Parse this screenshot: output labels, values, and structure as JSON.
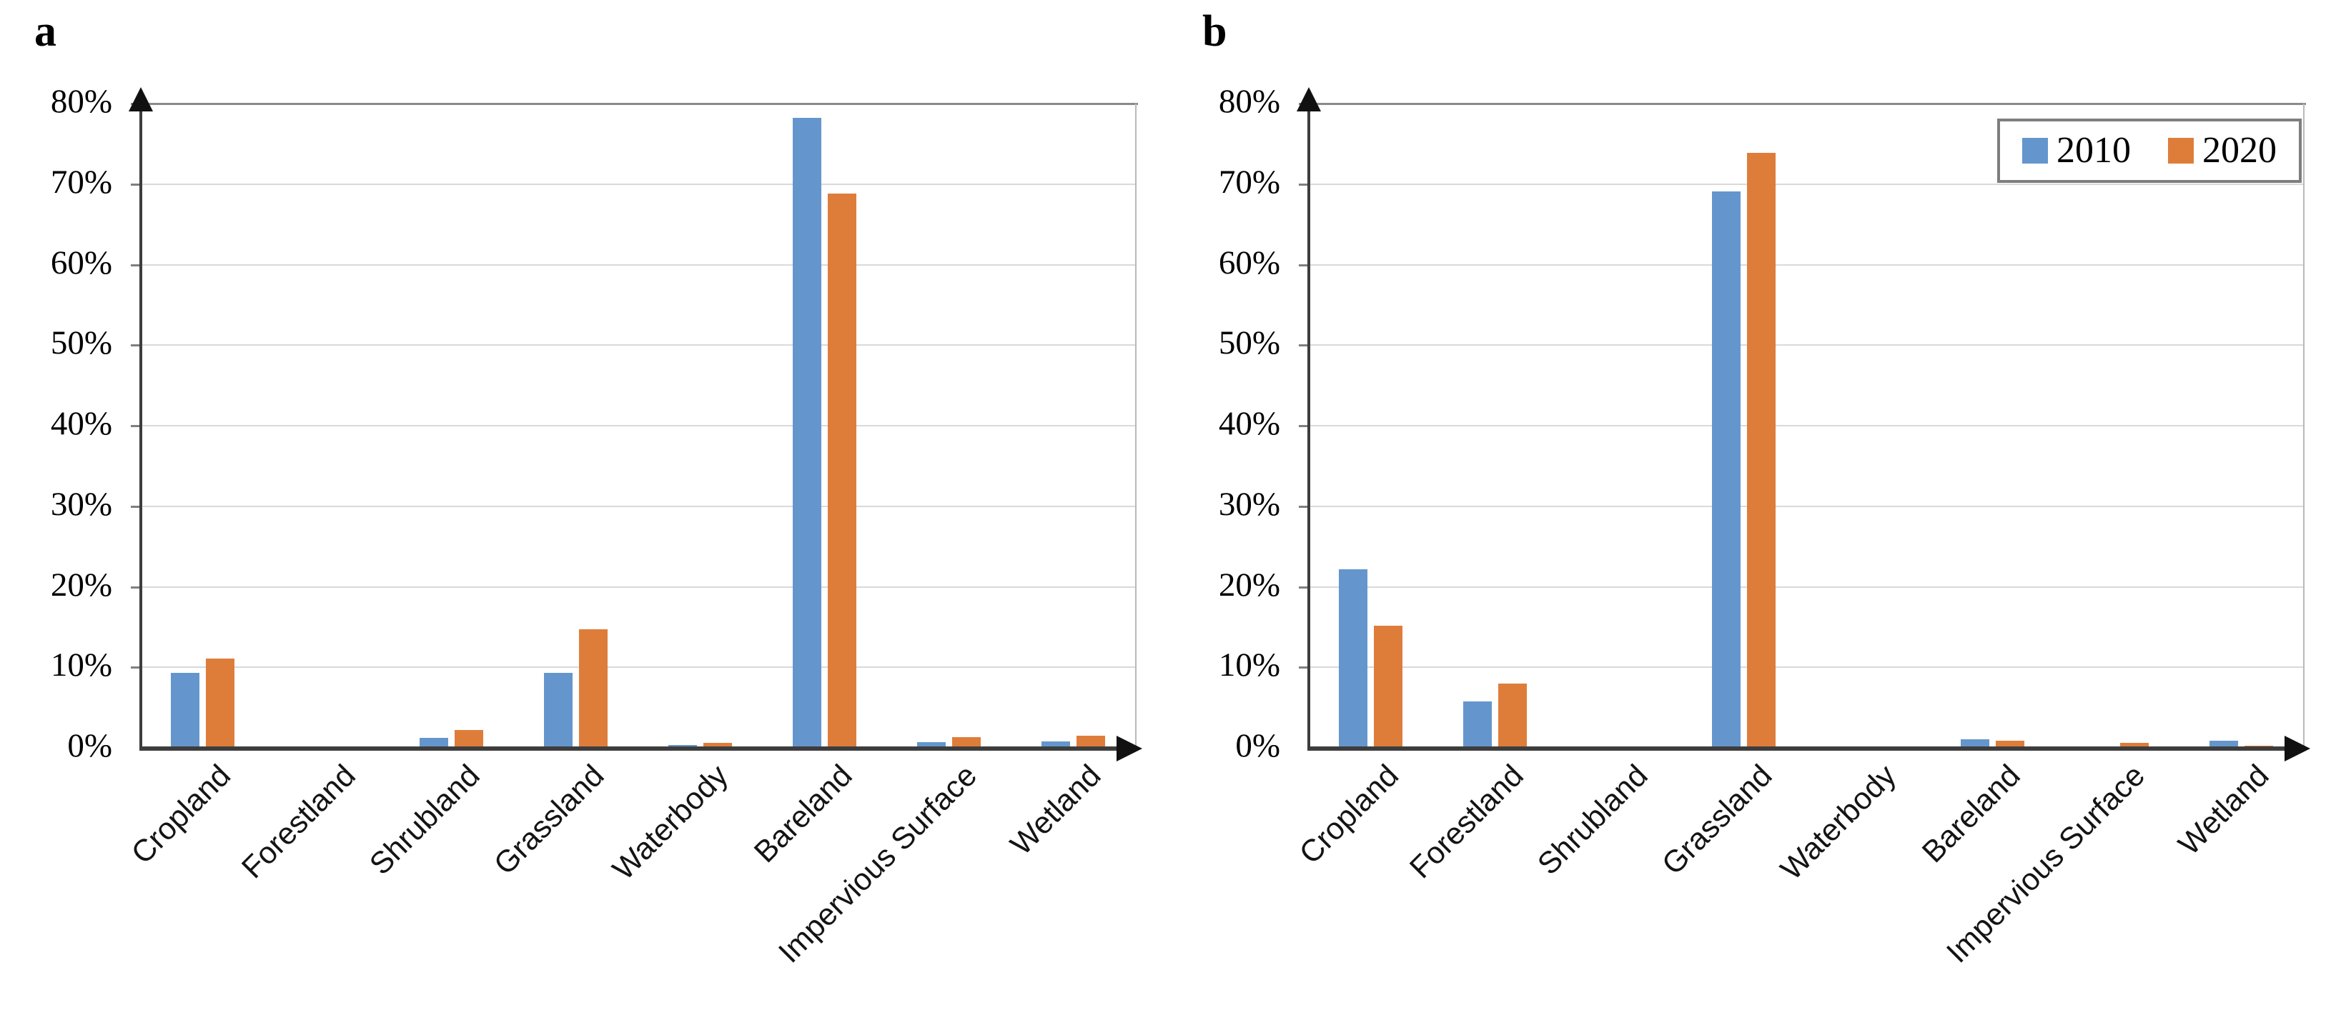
{
  "page": {
    "background": "#ffffff"
  },
  "legend": {
    "items": [
      {
        "label": "2010",
        "color": "#6496CD"
      },
      {
        "label": "2020",
        "color": "#DE7D3A"
      }
    ]
  },
  "chart_data": [
    {
      "type": "bar",
      "panel_label": "a",
      "title": "",
      "xlabel": "",
      "ylabel": "",
      "categories": [
        "Cropland",
        "Forestland",
        "Shrubland",
        "Grassland",
        "Waterbody",
        "Bareland",
        "Impervious Surface",
        "Wetland"
      ],
      "series": [
        {
          "name": "2010",
          "color": "#6496CD",
          "values": [
            9.3,
            0.05,
            1.2,
            9.3,
            0.35,
            78.2,
            0.7,
            0.8
          ]
        },
        {
          "name": "2020",
          "color": "#DE7D3A",
          "values": [
            11.1,
            0.05,
            2.2,
            14.7,
            0.6,
            68.8,
            1.3,
            1.5
          ]
        }
      ],
      "ylim": [
        0,
        80
      ],
      "ytick_labels": [
        "0%",
        "10%",
        "20%",
        "30%",
        "40%",
        "50%",
        "60%",
        "70%",
        "80%"
      ],
      "grid": true,
      "show_legend": false,
      "legend_position": "none"
    },
    {
      "type": "bar",
      "panel_label": "b",
      "title": "",
      "xlabel": "",
      "ylabel": "",
      "categories": [
        "Cropland",
        "Forestland",
        "Shrubland",
        "Grassland",
        "Waterbody",
        "Bareland",
        "Impervious Surface",
        "Wetland"
      ],
      "series": [
        {
          "name": "2010",
          "color": "#6496CD",
          "values": [
            22.2,
            5.8,
            0.05,
            69.1,
            0.05,
            1.1,
            0.05,
            0.9
          ]
        },
        {
          "name": "2020",
          "color": "#DE7D3A",
          "values": [
            15.2,
            8.0,
            0.05,
            73.9,
            0.05,
            0.9,
            0.65,
            0.3
          ]
        }
      ],
      "ylim": [
        0,
        80
      ],
      "ytick_labels": [
        "0%",
        "10%",
        "20%",
        "30%",
        "40%",
        "50%",
        "60%",
        "70%",
        "80%"
      ],
      "grid": true,
      "show_legend": true,
      "legend_position": "top-right"
    }
  ]
}
